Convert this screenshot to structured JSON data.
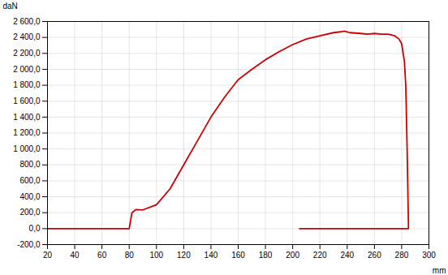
{
  "chart_data": {
    "type": "line",
    "xlabel": "mm",
    "ylabel": "daN",
    "x": [
      20,
      78,
      79,
      80,
      82,
      85,
      90,
      100,
      110,
      120,
      130,
      140,
      150,
      160,
      170,
      180,
      190,
      200,
      210,
      220,
      230,
      235,
      238,
      240,
      242,
      242,
      250,
      255,
      260,
      265,
      270,
      275,
      278,
      280,
      282,
      283,
      284,
      285,
      210,
      208,
      206,
      205
    ],
    "values": [
      0,
      0,
      0,
      0,
      200,
      240,
      235,
      300,
      500,
      800,
      1100,
      1400,
      1650,
      1870,
      2000,
      2120,
      2220,
      2310,
      2380,
      2420,
      2460,
      2470,
      2480,
      2470,
      2460,
      2460,
      2450,
      2440,
      2450,
      2440,
      2440,
      2420,
      2380,
      2320,
      2100,
      1800,
      1000,
      0,
      0,
      0,
      0,
      0
    ],
    "color": "#cc0000",
    "xlim": [
      20,
      300
    ],
    "ylim": [
      -200,
      2600
    ],
    "xticks": [
      20,
      40,
      60,
      80,
      100,
      120,
      140,
      160,
      180,
      200,
      220,
      240,
      260,
      280,
      300
    ],
    "yticks": [
      {
        "value": -200,
        "label": "-200,0"
      },
      {
        "value": 0,
        "label": "0,0"
      },
      {
        "value": 200,
        "label": "200,0"
      },
      {
        "value": 400,
        "label": "400,0"
      },
      {
        "value": 600,
        "label": "600,0"
      },
      {
        "value": 800,
        "label": "800,0"
      },
      {
        "value": 1000,
        "label": "1 000,0"
      },
      {
        "value": 1200,
        "label": "1 200,0"
      },
      {
        "value": 1400,
        "label": "1 400,0"
      },
      {
        "value": 1600,
        "label": "1 600,0"
      },
      {
        "value": 1800,
        "label": "1 800,0"
      },
      {
        "value": 2000,
        "label": "2 000,0"
      },
      {
        "value": 2200,
        "label": "2 200,0"
      },
      {
        "value": 2400,
        "label": "2 400,0"
      },
      {
        "value": 2600,
        "label": "2 600,0"
      }
    ],
    "grid": true
  }
}
